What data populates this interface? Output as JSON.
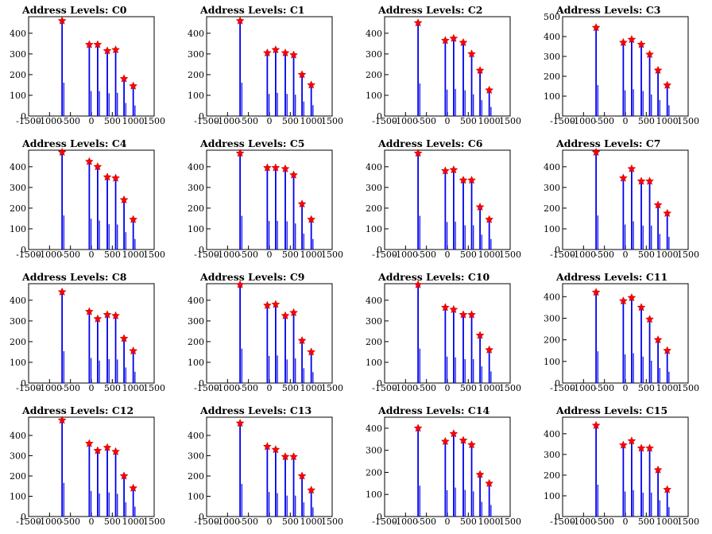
{
  "chart_data": [
    {
      "type": "bar",
      "title": "Address Levels: C0",
      "x": [
        -700,
        -50,
        150,
        380,
        580,
        780,
        1000
      ],
      "values": [
        460,
        345,
        345,
        315,
        320,
        180,
        145
      ],
      "xlim": [
        -1500,
        1500
      ],
      "ylim": [
        0,
        480
      ],
      "xticks": [
        -1500,
        -1000,
        -500,
        0,
        500,
        1000,
        1500
      ],
      "yticks": [
        0,
        100,
        200,
        300,
        400
      ]
    },
    {
      "type": "bar",
      "title": "Address Levels: C1",
      "x": [
        -700,
        -50,
        150,
        380,
        580,
        780,
        1000
      ],
      "values": [
        460,
        305,
        320,
        305,
        295,
        200,
        150
      ],
      "xlim": [
        -1500,
        1500
      ],
      "ylim": [
        0,
        480
      ],
      "xticks": [
        -1500,
        -1000,
        -500,
        0,
        500,
        1000,
        1500
      ],
      "yticks": [
        0,
        100,
        200,
        300,
        400
      ]
    },
    {
      "type": "bar",
      "title": "Address Levels: C2",
      "x": [
        -700,
        -50,
        150,
        380,
        580,
        780,
        1000
      ],
      "values": [
        450,
        365,
        375,
        355,
        300,
        220,
        125
      ],
      "xlim": [
        -1500,
        1500
      ],
      "ylim": [
        0,
        480
      ],
      "xticks": [
        -1500,
        -1000,
        -500,
        0,
        500,
        1000,
        1500
      ],
      "yticks": [
        0,
        100,
        200,
        300,
        400
      ]
    },
    {
      "type": "bar",
      "title": "Address Levels: C3",
      "x": [
        -700,
        -50,
        150,
        380,
        580,
        780,
        1000
      ],
      "values": [
        445,
        370,
        385,
        360,
        310,
        230,
        155
      ],
      "xlim": [
        -1500,
        1500
      ],
      "ylim": [
        0,
        500
      ],
      "xticks": [
        -1500,
        -1000,
        -500,
        0,
        500,
        1000,
        1500
      ],
      "yticks": [
        0,
        100,
        200,
        300,
        400,
        500
      ]
    },
    {
      "type": "bar",
      "title": "Address Levels: C4",
      "x": [
        -700,
        -50,
        150,
        380,
        580,
        780,
        1000
      ],
      "values": [
        470,
        425,
        400,
        350,
        345,
        240,
        145
      ],
      "xlim": [
        -1500,
        1500
      ],
      "ylim": [
        0,
        480
      ],
      "xticks": [
        -1500,
        -1000,
        -500,
        0,
        500,
        1000,
        1500
      ],
      "yticks": [
        0,
        100,
        200,
        300,
        400
      ]
    },
    {
      "type": "bar",
      "title": "Address Levels: C5",
      "x": [
        -700,
        -50,
        150,
        380,
        580,
        780,
        1000
      ],
      "values": [
        465,
        395,
        395,
        390,
        360,
        220,
        145
      ],
      "xlim": [
        -1500,
        1500
      ],
      "ylim": [
        0,
        480
      ],
      "xticks": [
        -1500,
        -1000,
        -500,
        0,
        500,
        1000,
        1500
      ],
      "yticks": [
        0,
        100,
        200,
        300,
        400
      ]
    },
    {
      "type": "bar",
      "title": "Address Levels: C6",
      "x": [
        -700,
        -50,
        150,
        380,
        580,
        780,
        1000
      ],
      "values": [
        465,
        380,
        385,
        335,
        335,
        205,
        145
      ],
      "xlim": [
        -1500,
        1500
      ],
      "ylim": [
        0,
        480
      ],
      "xticks": [
        -1500,
        -1000,
        -500,
        0,
        500,
        1000,
        1500
      ],
      "yticks": [
        0,
        100,
        200,
        300,
        400
      ]
    },
    {
      "type": "bar",
      "title": "Address Levels: C7",
      "x": [
        -700,
        -50,
        150,
        380,
        580,
        780,
        1000
      ],
      "values": [
        470,
        345,
        390,
        330,
        330,
        215,
        175
      ],
      "xlim": [
        -1500,
        1500
      ],
      "ylim": [
        0,
        480
      ],
      "xticks": [
        -1500,
        -1000,
        -500,
        0,
        500,
        1000,
        1500
      ],
      "yticks": [
        0,
        100,
        200,
        300,
        400
      ]
    },
    {
      "type": "bar",
      "title": "Address Levels: C8",
      "x": [
        -700,
        -50,
        150,
        380,
        580,
        780,
        1000
      ],
      "values": [
        440,
        345,
        310,
        330,
        325,
        215,
        155
      ],
      "xlim": [
        -1500,
        1500
      ],
      "ylim": [
        0,
        480
      ],
      "xticks": [
        -1500,
        -1000,
        -500,
        0,
        500,
        1000,
        1500
      ],
      "yticks": [
        0,
        100,
        200,
        300,
        400
      ]
    },
    {
      "type": "bar",
      "title": "Address Levels: C9",
      "x": [
        -700,
        -50,
        150,
        380,
        580,
        780,
        1000
      ],
      "values": [
        475,
        375,
        380,
        325,
        340,
        205,
        150
      ],
      "xlim": [
        -1500,
        1500
      ],
      "ylim": [
        0,
        480
      ],
      "xticks": [
        -1500,
        -1000,
        -500,
        0,
        500,
        1000,
        1500
      ],
      "yticks": [
        0,
        100,
        200,
        300,
        400
      ]
    },
    {
      "type": "bar",
      "title": "Address Levels: C10",
      "x": [
        -700,
        -50,
        150,
        380,
        580,
        780,
        1000
      ],
      "values": [
        475,
        365,
        355,
        330,
        330,
        230,
        160
      ],
      "xlim": [
        -1500,
        1500
      ],
      "ylim": [
        0,
        480
      ],
      "xticks": [
        -1500,
        -1000,
        -500,
        0,
        500,
        1000,
        1500
      ],
      "yticks": [
        0,
        100,
        200,
        300,
        400
      ]
    },
    {
      "type": "bar",
      "title": "Address Levels: C11",
      "x": [
        -700,
        -50,
        150,
        380,
        580,
        780,
        1000
      ],
      "values": [
        420,
        380,
        395,
        350,
        295,
        200,
        150
      ],
      "xlim": [
        -1500,
        1500
      ],
      "ylim": [
        0,
        460
      ],
      "xticks": [
        -1500,
        -1000,
        -500,
        0,
        500,
        1000,
        1500
      ],
      "yticks": [
        0,
        100,
        200,
        300,
        400
      ]
    },
    {
      "type": "bar",
      "title": "Address Levels: C12",
      "x": [
        -700,
        -50,
        150,
        380,
        580,
        780,
        1000
      ],
      "values": [
        475,
        360,
        325,
        340,
        320,
        200,
        140
      ],
      "xlim": [
        -1500,
        1500
      ],
      "ylim": [
        0,
        490
      ],
      "xticks": [
        -1500,
        -1000,
        -500,
        0,
        500,
        1000,
        1500
      ],
      "yticks": [
        0,
        100,
        200,
        300,
        400
      ]
    },
    {
      "type": "bar",
      "title": "Address Levels: C13",
      "x": [
        -700,
        -50,
        150,
        380,
        580,
        780,
        1000
      ],
      "values": [
        460,
        345,
        330,
        295,
        295,
        200,
        130
      ],
      "xlim": [
        -1500,
        1500
      ],
      "ylim": [
        0,
        490
      ],
      "xticks": [
        -1500,
        -1000,
        -500,
        0,
        500,
        1000,
        1500
      ],
      "yticks": [
        0,
        100,
        200,
        300,
        400
      ]
    },
    {
      "type": "bar",
      "title": "Address Levels: C14",
      "x": [
        -700,
        -50,
        150,
        380,
        580,
        780,
        1000
      ],
      "values": [
        400,
        340,
        375,
        345,
        325,
        190,
        150
      ],
      "xlim": [
        -1500,
        1500
      ],
      "ylim": [
        0,
        450
      ],
      "xticks": [
        -1500,
        -1000,
        -500,
        0,
        500,
        1000,
        1500
      ],
      "yticks": [
        0,
        100,
        200,
        300,
        400
      ]
    },
    {
      "type": "bar",
      "title": "Address Levels: C15",
      "x": [
        -700,
        -50,
        150,
        380,
        580,
        780,
        1000
      ],
      "values": [
        440,
        345,
        365,
        330,
        330,
        225,
        130
      ],
      "xlim": [
        -1500,
        1500
      ],
      "ylim": [
        0,
        480
      ],
      "xticks": [
        -1500,
        -1000,
        -500,
        0,
        500,
        1000,
        1500
      ],
      "yticks": [
        0,
        100,
        200,
        300,
        400
      ]
    }
  ],
  "colors": {
    "bar": "#0000ee",
    "marker": "#ff0000",
    "axis": "#000000"
  }
}
